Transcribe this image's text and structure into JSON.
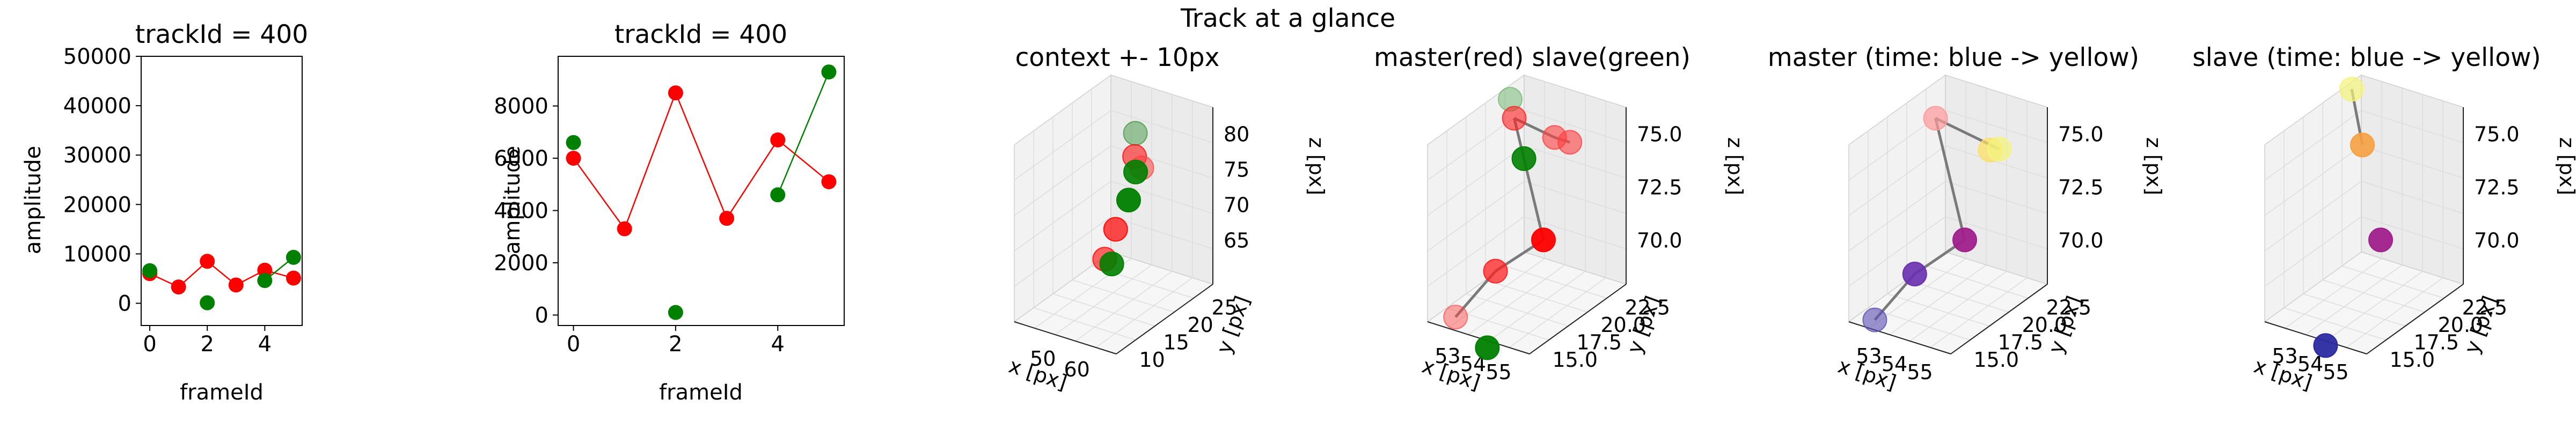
{
  "figure": {
    "suptitle": "Track at a glance"
  },
  "chart_data": [
    {
      "type": "line",
      "title": "trackId = 400",
      "xlabel": "frameId",
      "ylabel": "amplitude",
      "xlim": [
        -0.3,
        5.3
      ],
      "ylim": [
        -4500,
        50000
      ],
      "xticks": [
        0,
        2,
        4
      ],
      "yticks": [
        0,
        10000,
        20000,
        30000,
        40000,
        50000
      ],
      "series": [
        {
          "color": "#ff0000",
          "x": [
            0,
            1,
            2,
            3,
            4,
            5
          ],
          "y": [
            6000,
            3300,
            8500,
            3700,
            6700,
            5100
          ]
        },
        {
          "color": "#008000",
          "x": [
            0,
            2,
            4,
            5
          ],
          "y": [
            6600,
            100,
            4600,
            9300
          ],
          "segments": [
            [
              2,
              3
            ]
          ]
        }
      ]
    },
    {
      "type": "line",
      "title": "trackId = 400",
      "xlabel": "frameId",
      "ylabel": "amplitude",
      "xlim": [
        -0.3,
        5.3
      ],
      "ylim": [
        -400,
        9900
      ],
      "xticks": [
        0,
        2,
        4
      ],
      "yticks": [
        0,
        2000,
        4000,
        6000,
        8000
      ],
      "series": [
        {
          "color": "#ff0000",
          "x": [
            0,
            1,
            2,
            3,
            4,
            5
          ],
          "y": [
            6000,
            3300,
            8500,
            3700,
            6700,
            5100
          ]
        },
        {
          "color": "#008000",
          "x": [
            0,
            2,
            4,
            5
          ],
          "y": [
            6600,
            100,
            4600,
            9300
          ],
          "segments": [
            [
              2,
              3
            ]
          ]
        }
      ]
    },
    {
      "type": "scatter",
      "title": "context +- 10px",
      "xlabel": "x [px]",
      "ylabel": "y [px]",
      "zlabel": "z [px]",
      "xticks": [
        "50",
        "60"
      ],
      "yticks": [
        "10",
        "15",
        "20",
        "25"
      ],
      "zticks": [
        "65",
        "70",
        "75",
        "80"
      ],
      "points": [
        {
          "color": "#ff0000",
          "alpha": 0.5,
          "label": "red"
        },
        {
          "color": "#008000",
          "alpha": 0.9,
          "label": "green"
        }
      ]
    },
    {
      "type": "scatter",
      "title": "master(red) slave(green)",
      "xlabel": "x [px]",
      "ylabel": "y [px]",
      "zlabel": "z [px]",
      "xticks": [
        "53",
        "54",
        "55"
      ],
      "yticks": [
        "15.0",
        "17.5",
        "20.0",
        "22.5"
      ],
      "zticks": [
        "70.0",
        "72.5",
        "75.0"
      ]
    },
    {
      "type": "scatter",
      "title": "master (time: blue -> yellow)",
      "xlabel": "x [px]",
      "ylabel": "y [px]",
      "zlabel": "z [px]",
      "xticks": [
        "53",
        "54",
        "55"
      ],
      "yticks": [
        "15.0",
        "17.5",
        "20.0",
        "22.5"
      ],
      "zticks": [
        "70.0",
        "72.5",
        "75.0"
      ]
    },
    {
      "type": "scatter",
      "title": "slave (time: blue -> yellow)",
      "xlabel": "x [px]",
      "ylabel": "y [px]",
      "zlabel": "z [px]",
      "xticks": [
        "53",
        "54",
        "55"
      ],
      "yticks": [
        "15.0",
        "17.5",
        "20.0",
        "22.5"
      ],
      "zticks": [
        "70.0",
        "72.5",
        "75.0"
      ]
    }
  ]
}
